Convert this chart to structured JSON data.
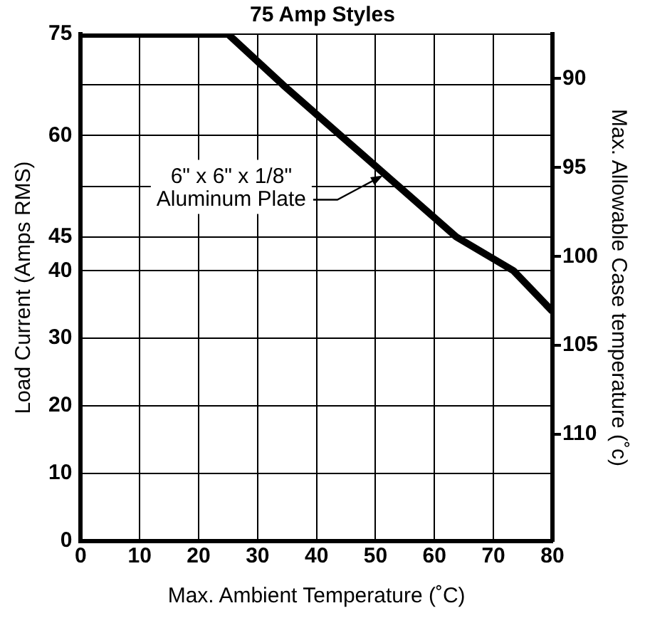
{
  "chart_data": {
    "type": "line",
    "title": "75 Amp Styles",
    "xlabel": "Max. Ambient Temperature (˚C)",
    "ylabel": "Load Current (Amps RMS)",
    "y2label": "Max. Allowable Case temperature (˚c)",
    "x": [
      0,
      25,
      34.3,
      44.1,
      53.9,
      63.7,
      73.4,
      80
    ],
    "series": [
      {
        "color": "#000000",
        "values": [
          75,
          75,
          67.5,
          60,
          52.5,
          45,
          40,
          34
        ]
      }
    ],
    "xlim": [
      0,
      80
    ],
    "xticks": [
      0,
      10,
      20,
      30,
      40,
      50,
      60,
      70,
      80
    ],
    "ylim": [
      0,
      75
    ],
    "yticks": [
      0,
      10,
      20,
      30,
      40,
      45,
      {
        "value": 52.5,
        "label": null
      },
      60,
      {
        "value": 67.5,
        "label": null
      },
      75
    ],
    "y2lim": [
      116,
      87.5
    ],
    "y2ticks": [
      90,
      95,
      100,
      105,
      110
    ],
    "annotations": [
      {
        "text": "6\" x 6\" x 1/8\"\nAluminum Plate",
        "x": 51.5,
        "y": 54.3
      }
    ],
    "grid": true,
    "legend": false,
    "marker": "none",
    "line_style": "solid"
  }
}
